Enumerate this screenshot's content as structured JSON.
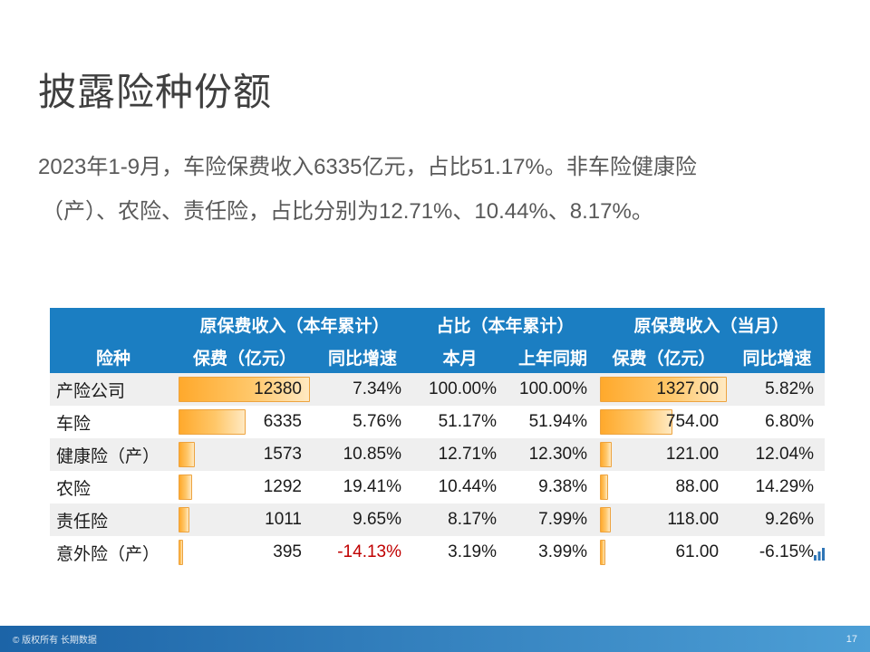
{
  "slide": {
    "title": "披露险种份额",
    "body_lines": [
      "2023年1-9月，车险保费收入6335亿元，占比51.17%。非车险健康险",
      "（产）、农险、责任险，占比分别为12.71%、10.44%、8.17%。"
    ]
  },
  "chart_data": {
    "type": "table",
    "header_groups": [
      "原保费收入（本年累计）",
      "占比（本年累计）",
      "原保费收入（当月）"
    ],
    "columns": [
      "险种",
      "保费（亿元）",
      "同比增速",
      "本月",
      "上年同期",
      "保费（亿元）",
      "同比增速"
    ],
    "bar_scale": {
      "ytd_premium_max": 12380,
      "month_premium_max": 1327
    },
    "rows": [
      {
        "name": "产险公司",
        "cells": [
          {
            "text": "12380",
            "value": 12380,
            "bar_pct": 100
          },
          {
            "text": "7.34%",
            "value": 7.34
          },
          {
            "text": "100.00%",
            "value": 100.0
          },
          {
            "text": "100.00%",
            "value": 100.0
          },
          {
            "text": "1327.00",
            "value": 1327.0,
            "bar_pct": 100
          },
          {
            "text": "5.82%",
            "value": 5.82
          }
        ]
      },
      {
        "name": "车险",
        "cells": [
          {
            "text": "6335",
            "value": 6335,
            "bar_pct": 51.2
          },
          {
            "text": "5.76%",
            "value": 5.76
          },
          {
            "text": "51.17%",
            "value": 51.17
          },
          {
            "text": "51.94%",
            "value": 51.94
          },
          {
            "text": "754.00",
            "value": 754.0,
            "bar_pct": 56.8
          },
          {
            "text": "6.80%",
            "value": 6.8
          }
        ]
      },
      {
        "name": "健康险（产）",
        "cells": [
          {
            "text": "1573",
            "value": 1573,
            "bar_pct": 12.7
          },
          {
            "text": "10.85%",
            "value": 10.85
          },
          {
            "text": "12.71%",
            "value": 12.71
          },
          {
            "text": "12.30%",
            "value": 12.3
          },
          {
            "text": "121.00",
            "value": 121.0,
            "bar_pct": 9.1
          },
          {
            "text": "12.04%",
            "value": 12.04
          }
        ]
      },
      {
        "name": "农险",
        "cells": [
          {
            "text": "1292",
            "value": 1292,
            "bar_pct": 10.4
          },
          {
            "text": "19.41%",
            "value": 19.41
          },
          {
            "text": "10.44%",
            "value": 10.44
          },
          {
            "text": "9.38%",
            "value": 9.38
          },
          {
            "text": "88.00",
            "value": 88.0,
            "bar_pct": 6.6
          },
          {
            "text": "14.29%",
            "value": 14.29
          }
        ]
      },
      {
        "name": "责任险",
        "cells": [
          {
            "text": "1011",
            "value": 1011,
            "bar_pct": 8.2
          },
          {
            "text": "9.65%",
            "value": 9.65
          },
          {
            "text": "8.17%",
            "value": 8.17
          },
          {
            "text": "7.99%",
            "value": 7.99
          },
          {
            "text": "118.00",
            "value": 118.0,
            "bar_pct": 8.9
          },
          {
            "text": "9.26%",
            "value": 9.26
          }
        ]
      },
      {
        "name": "意外险（产）",
        "cells": [
          {
            "text": "395",
            "value": 395,
            "bar_pct": 3.2
          },
          {
            "text": "-14.13%",
            "value": -14.13,
            "color": "#C00000"
          },
          {
            "text": "3.19%",
            "value": 3.19
          },
          {
            "text": "3.99%",
            "value": 3.99
          },
          {
            "text": "61.00",
            "value": 61.0,
            "bar_pct": 4.6
          },
          {
            "text": "-6.15%",
            "value": -6.15
          }
        ]
      }
    ]
  },
  "footer": {
    "copyright": "© 版权所有 长期数据",
    "page_number": "17"
  },
  "icons": {
    "mini_chart": "mini-chart-icon"
  },
  "colors": {
    "header_blue": "#1B7EC2",
    "row_alt": "#EFEFEF",
    "bar_fill_start": "#FFA92C",
    "bar_fill_end": "#FFE9C2",
    "bar_border": "#EDA33F",
    "negative_red": "#C00000",
    "title_text": "#3F3F3F",
    "body_text": "#595959",
    "footer_gradient_start": "#1C64A7",
    "footer_gradient_end": "#4D9FD6"
  }
}
